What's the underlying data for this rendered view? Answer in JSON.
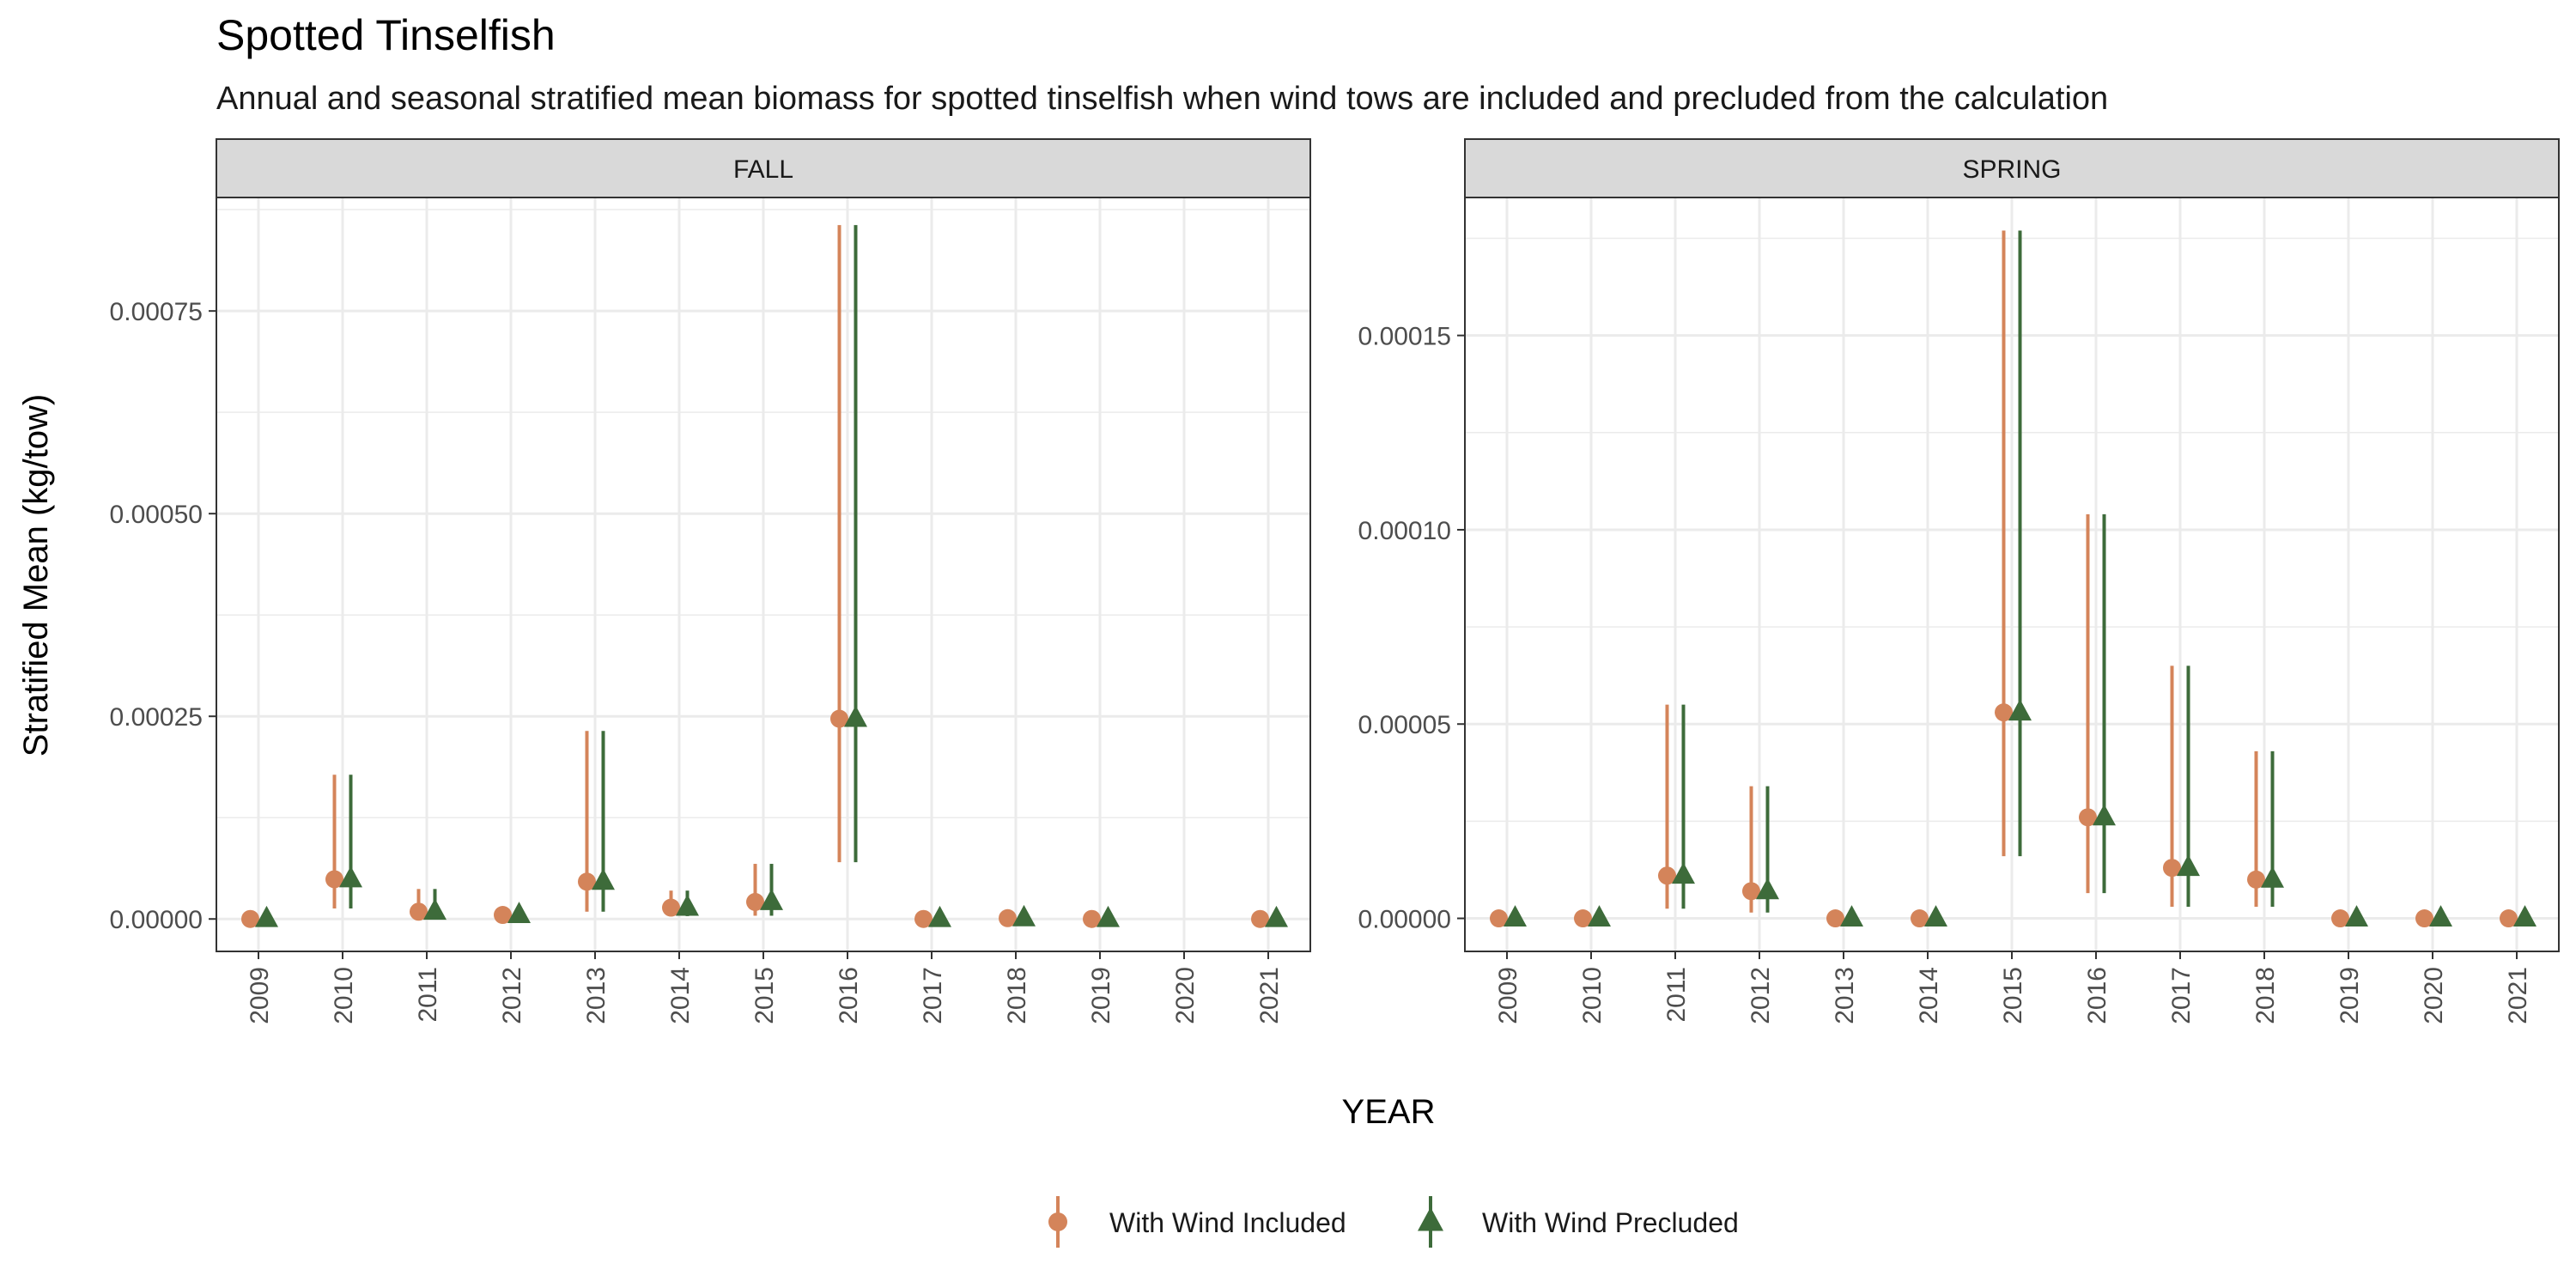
{
  "chart_data": {
    "type": "scatter",
    "title": "Spotted Tinselfish",
    "subtitle": "Annual and seasonal stratified mean biomass for spotted tinselfish when wind tows are included and precluded from the calculation",
    "xlabel": "YEAR",
    "ylabel": "Stratified Mean (kg/tow)",
    "categories": [
      "2009",
      "2010",
      "2011",
      "2012",
      "2013",
      "2014",
      "2015",
      "2016",
      "2017",
      "2018",
      "2019",
      "2020",
      "2021"
    ],
    "legend": {
      "position": "bottom",
      "entries": [
        "With Wind Included",
        "With Wind Precluded"
      ]
    },
    "colors": {
      "included": "#d4845a",
      "precluded": "#3d6b3a",
      "strip_fill": "#d9d9d9",
      "grid": "#ebebeb"
    },
    "grid": true,
    "panels": [
      {
        "strip": "FALL",
        "ylim": [
          -4e-05,
          0.00089
        ],
        "yticks": [
          0,
          0.00025,
          0.0005,
          0.00075
        ],
        "ytick_labels": [
          "0.00000",
          "0.00025",
          "0.00050",
          "0.00075"
        ],
        "series": [
          {
            "name": "With Wind Included",
            "points": [
              {
                "x": "2009",
                "y": 0.0
              },
              {
                "x": "2010",
                "y": 4.9e-05,
                "low": 1.3e-05,
                "high": 0.000178
              },
              {
                "x": "2011",
                "y": 9e-06,
                "low": 1.5e-06,
                "high": 3.7e-05
              },
              {
                "x": "2012",
                "y": 5e-06,
                "low": 1e-06,
                "high": 1.5e-05
              },
              {
                "x": "2013",
                "y": 4.6e-05,
                "low": 9e-06,
                "high": 0.000232
              },
              {
                "x": "2014",
                "y": 1.4e-05,
                "low": 3.5e-06,
                "high": 3.5e-05
              },
              {
                "x": "2015",
                "y": 2.1e-05,
                "low": 4e-06,
                "high": 6.8e-05
              },
              {
                "x": "2016",
                "y": 0.000247,
                "low": 7e-05,
                "high": 0.000856
              },
              {
                "x": "2017",
                "y": 0.0
              },
              {
                "x": "2018",
                "y": 1e-06
              },
              {
                "x": "2019",
                "y": 0.0
              },
              {
                "x": "2021",
                "y": 0.0
              }
            ]
          },
          {
            "name": "With Wind Precluded",
            "points": [
              {
                "x": "2009",
                "y": 0.0
              },
              {
                "x": "2010",
                "y": 4.9e-05,
                "low": 1.3e-05,
                "high": 0.000178
              },
              {
                "x": "2011",
                "y": 9e-06,
                "low": 1.5e-06,
                "high": 3.7e-05
              },
              {
                "x": "2012",
                "y": 5e-06,
                "low": 1e-06,
                "high": 1.5e-05
              },
              {
                "x": "2013",
                "y": 4.6e-05,
                "low": 9e-06,
                "high": 0.000232
              },
              {
                "x": "2014",
                "y": 1.4e-05,
                "low": 3.5e-06,
                "high": 3.5e-05
              },
              {
                "x": "2015",
                "y": 2.1e-05,
                "low": 4e-06,
                "high": 6.8e-05
              },
              {
                "x": "2016",
                "y": 0.000247,
                "low": 7e-05,
                "high": 0.000856
              },
              {
                "x": "2017",
                "y": 0.0
              },
              {
                "x": "2018",
                "y": 1e-06
              },
              {
                "x": "2019",
                "y": 0.0
              },
              {
                "x": "2021",
                "y": 0.0
              }
            ]
          }
        ]
      },
      {
        "strip": "SPRING",
        "ylim": [
          -8.5e-06,
          0.0001855
        ],
        "yticks": [
          0,
          5e-05,
          0.0001,
          0.00015
        ],
        "ytick_labels": [
          "0.00000",
          "0.00005",
          "0.00010",
          "0.00015"
        ],
        "series": [
          {
            "name": "With Wind Included",
            "points": [
              {
                "x": "2009",
                "y": 0.0
              },
              {
                "x": "2010",
                "y": 0.0
              },
              {
                "x": "2011",
                "y": 1.1e-05,
                "low": 2.5e-06,
                "high": 5.5e-05
              },
              {
                "x": "2012",
                "y": 7e-06,
                "low": 1.5e-06,
                "high": 3.4e-05
              },
              {
                "x": "2013",
                "y": 0.0
              },
              {
                "x": "2014",
                "y": 0.0
              },
              {
                "x": "2015",
                "y": 5.3e-05,
                "low": 1.6e-05,
                "high": 0.000177
              },
              {
                "x": "2016",
                "y": 2.6e-05,
                "low": 6.5e-06,
                "high": 0.000104
              },
              {
                "x": "2017",
                "y": 1.3e-05,
                "low": 3e-06,
                "high": 6.5e-05
              },
              {
                "x": "2018",
                "y": 1e-05,
                "low": 3e-06,
                "high": 4.3e-05
              },
              {
                "x": "2019",
                "y": 0.0
              },
              {
                "x": "2020",
                "y": 0.0
              },
              {
                "x": "2021",
                "y": 0.0
              }
            ]
          },
          {
            "name": "With Wind Precluded",
            "points": [
              {
                "x": "2009",
                "y": 0.0
              },
              {
                "x": "2010",
                "y": 0.0
              },
              {
                "x": "2011",
                "y": 1.1e-05,
                "low": 2.5e-06,
                "high": 5.5e-05
              },
              {
                "x": "2012",
                "y": 7e-06,
                "low": 1.5e-06,
                "high": 3.4e-05
              },
              {
                "x": "2013",
                "y": 0.0
              },
              {
                "x": "2014",
                "y": 0.0
              },
              {
                "x": "2015",
                "y": 5.3e-05,
                "low": 1.6e-05,
                "high": 0.000177
              },
              {
                "x": "2016",
                "y": 2.6e-05,
                "low": 6.5e-06,
                "high": 0.000104
              },
              {
                "x": "2017",
                "y": 1.3e-05,
                "low": 3e-06,
                "high": 6.5e-05
              },
              {
                "x": "2018",
                "y": 1e-05,
                "low": 3e-06,
                "high": 4.3e-05
              },
              {
                "x": "2019",
                "y": 0.0
              },
              {
                "x": "2020",
                "y": 0.0
              },
              {
                "x": "2021",
                "y": 0.0
              }
            ]
          }
        ]
      }
    ]
  }
}
